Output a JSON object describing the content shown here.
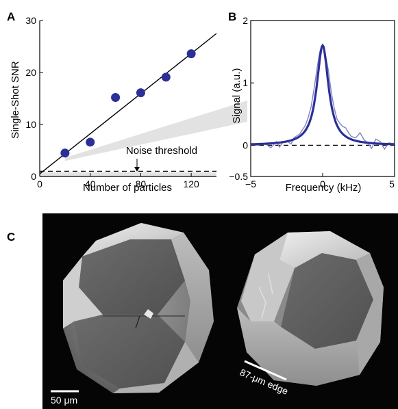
{
  "panels": {
    "a": "A",
    "b": "B",
    "c": "C"
  },
  "chart_data": [
    {
      "panel": "A",
      "type": "scatter",
      "xlabel": "Number of particles",
      "ylabel": "Single-Shot SNR",
      "xlim": [
        0,
        140
      ],
      "ylim": [
        0,
        30
      ],
      "xticks": [
        0,
        40,
        80,
        120
      ],
      "yticks": [
        0,
        10,
        20,
        30
      ],
      "points": [
        {
          "x": 20,
          "y": 4.5
        },
        {
          "x": 40,
          "y": 6.6
        },
        {
          "x": 60,
          "y": 15.2
        },
        {
          "x": 80,
          "y": 16.1
        },
        {
          "x": 100,
          "y": 19.1
        },
        {
          "x": 120,
          "y": 23.6
        }
      ],
      "fit_line": {
        "x": [
          0,
          140
        ],
        "y": [
          0.5,
          27.5
        ]
      },
      "noise_threshold": {
        "y": 1.0,
        "label": "Noise threshold"
      },
      "colors": {
        "points": "#2b2f97",
        "line": "#000000",
        "threshold": "#000000",
        "band": "#e2e2e2"
      },
      "grid": false
    },
    {
      "panel": "B",
      "type": "line",
      "xlabel": "Frequency (kHz)",
      "ylabel": "Signal (a.u.)",
      "xlim": [
        -5,
        5
      ],
      "ylim": [
        -0.5,
        2
      ],
      "xticks": [
        -5,
        0,
        5
      ],
      "yticks": [
        -0.5,
        0,
        1,
        2
      ],
      "fit": {
        "center": 0,
        "amplitude": 1.6,
        "hwhm": 0.5
      },
      "raw_trace": {
        "x": [
          -5,
          -4.5,
          -4,
          -3.6,
          -3.2,
          -3,
          -2.8,
          -2.5,
          -2.2,
          -2,
          -1.8,
          -1.6,
          -1.4,
          -1.2,
          -1,
          -0.8,
          -0.6,
          -0.4,
          -0.2,
          0,
          0.2,
          0.4,
          0.6,
          0.8,
          1,
          1.2,
          1.4,
          1.6,
          1.8,
          2,
          2.3,
          2.6,
          2.9,
          3.1,
          3.4,
          3.7,
          4,
          4.3,
          4.6,
          5
        ],
        "y": [
          0.02,
          0.0,
          0.03,
          -0.04,
          0.06,
          -0.03,
          0.04,
          0.07,
          0.02,
          0.12,
          0.15,
          0.18,
          0.25,
          0.32,
          0.45,
          0.62,
          0.9,
          1.22,
          1.5,
          1.62,
          1.45,
          1.2,
          0.85,
          0.6,
          0.42,
          0.35,
          0.3,
          0.28,
          0.2,
          0.14,
          0.12,
          0.2,
          0.08,
          0.05,
          -0.05,
          0.1,
          0.06,
          -0.06,
          0.04,
          0.02
        ]
      },
      "zero_line": 0,
      "colors": {
        "fit": "#2b2f97",
        "raw": "#8080c8",
        "zero": "#000000"
      },
      "grid": false
    }
  ],
  "micrograph": {
    "scale_label": "50 μm",
    "edge_label": "87-μm edge"
  }
}
